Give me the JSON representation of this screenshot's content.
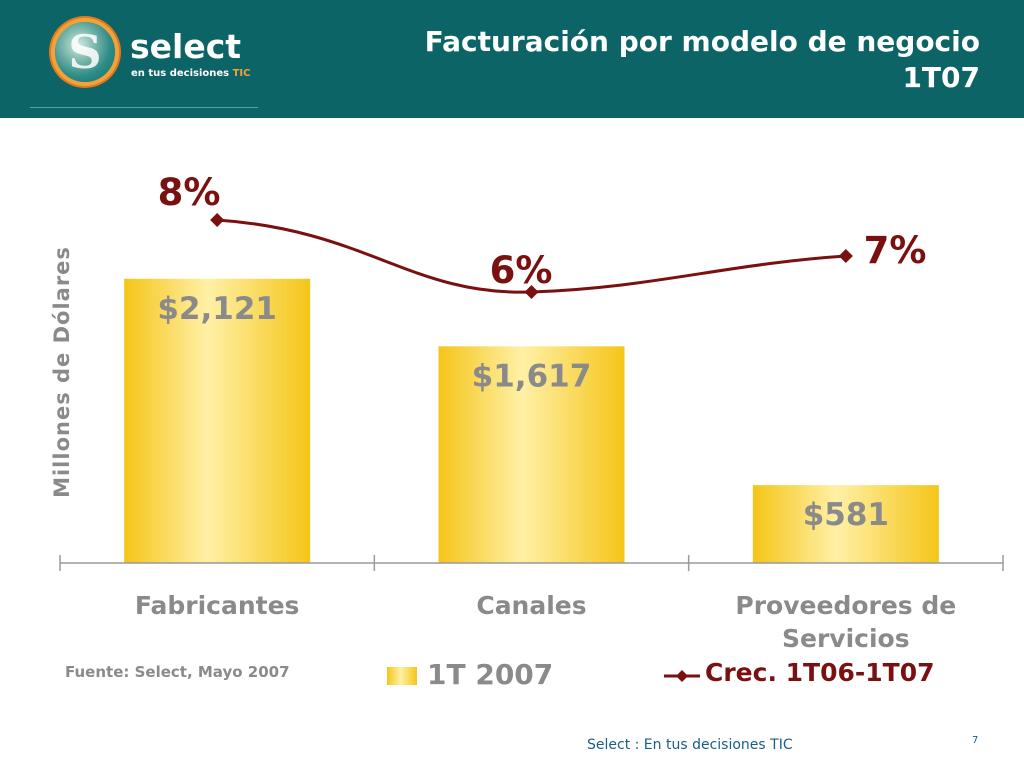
{
  "header": {
    "logo_word": "select",
    "logo_tag": "en tus decisiones",
    "logo_tag_accent": "TIC",
    "title_line1": "Facturación por modelo de negocio",
    "title_line2": "1T07"
  },
  "chart_data": {
    "type": "bar",
    "categories": [
      "Fabricantes",
      "Canales",
      "Proveedores de Servicios"
    ],
    "ylabel": "Millones de Dólares",
    "ylim": [
      0,
      2500
    ],
    "grid": false,
    "series": [
      {
        "name": "1T 2007",
        "type": "bar",
        "values": [
          2121,
          1617,
          581
        ],
        "labels": [
          "$2,121",
          "$1,617",
          "$581"
        ],
        "color": "#f5c518"
      },
      {
        "name": "Crec. 1T06-1T07",
        "type": "line",
        "values": [
          8,
          6,
          7
        ],
        "labels": [
          "8%",
          "6%",
          "7%"
        ],
        "unit": "%",
        "color": "#7a1010"
      }
    ],
    "legend": "bottom"
  },
  "source": "Fuente: Select, Mayo 2007",
  "footer": {
    "text": "Select  : En tus decisiones TIC",
    "page": "7"
  }
}
